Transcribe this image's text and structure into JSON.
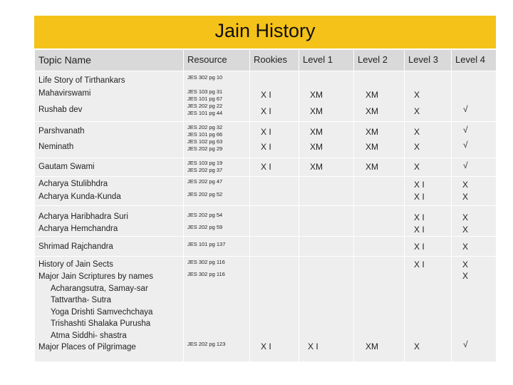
{
  "title": "Jain History",
  "headers": {
    "topic": "Topic Name",
    "resource": "Resource",
    "rookies": "Rookies",
    "level1": "Level 1",
    "level2": "Level 2",
    "level3": "Level 3",
    "level4": "Level 4"
  },
  "topics": {
    "t1": "Life Story of Tirthankars",
    "t2": "Mahavirswami",
    "t3": "Rushab dev",
    "t4": "Parshvanath",
    "t5": "Neminath",
    "t6": "Gautam Swami",
    "t7": "Acharya Stulibhdra",
    "t8": "Acharya Kunda-Kunda",
    "t9": "Acharya Haribhadra Suri",
    "t10": "Acharya Hemchandra",
    "t11": "Shrimad Rajchandra",
    "t12": "History of Jain Sects",
    "t13": "Major Jain Scriptures by names",
    "t13a": "Acharangsutra, Samay-sar",
    "t13b": "Tattvartha- Sutra",
    "t13c": "Yoga Drishti Samvechchaya",
    "t13d": "Trishashti Shalaka Purusha",
    "t13e": "Atma Siddhi- shastra",
    "t14": "Major Places of Pilgrimage"
  },
  "resources": {
    "r1": "JES 302 pg 10",
    "r2": "JES 103 pg 31",
    "r3": "JES 101 pg 67",
    "r4": "JES 202 pg 22",
    "r5": "JES 101 pg 44",
    "r6": "JES 202 pg 32",
    "r7": "JES 101 pg 66",
    "r8": "JES 102 pg 63",
    "r9": "JES 202 pg 29",
    "r10": "JES 103 pg 19",
    "r11": "JES 202 pg 37",
    "r12": "JES 202 pg 47",
    "r13": "JES 202 pg 52",
    "r14": "JES 202 pg 54",
    "r15": "JES 202 pg 59",
    "r16": "JES 101 pg 137",
    "r17": "JES 302 pg 116",
    "r18": "JES 302 pg 116",
    "r19": "JES 202 pg 123"
  },
  "marks": {
    "xi": "X I",
    "xm": "XM",
    "x": "X",
    "check": "√"
  }
}
